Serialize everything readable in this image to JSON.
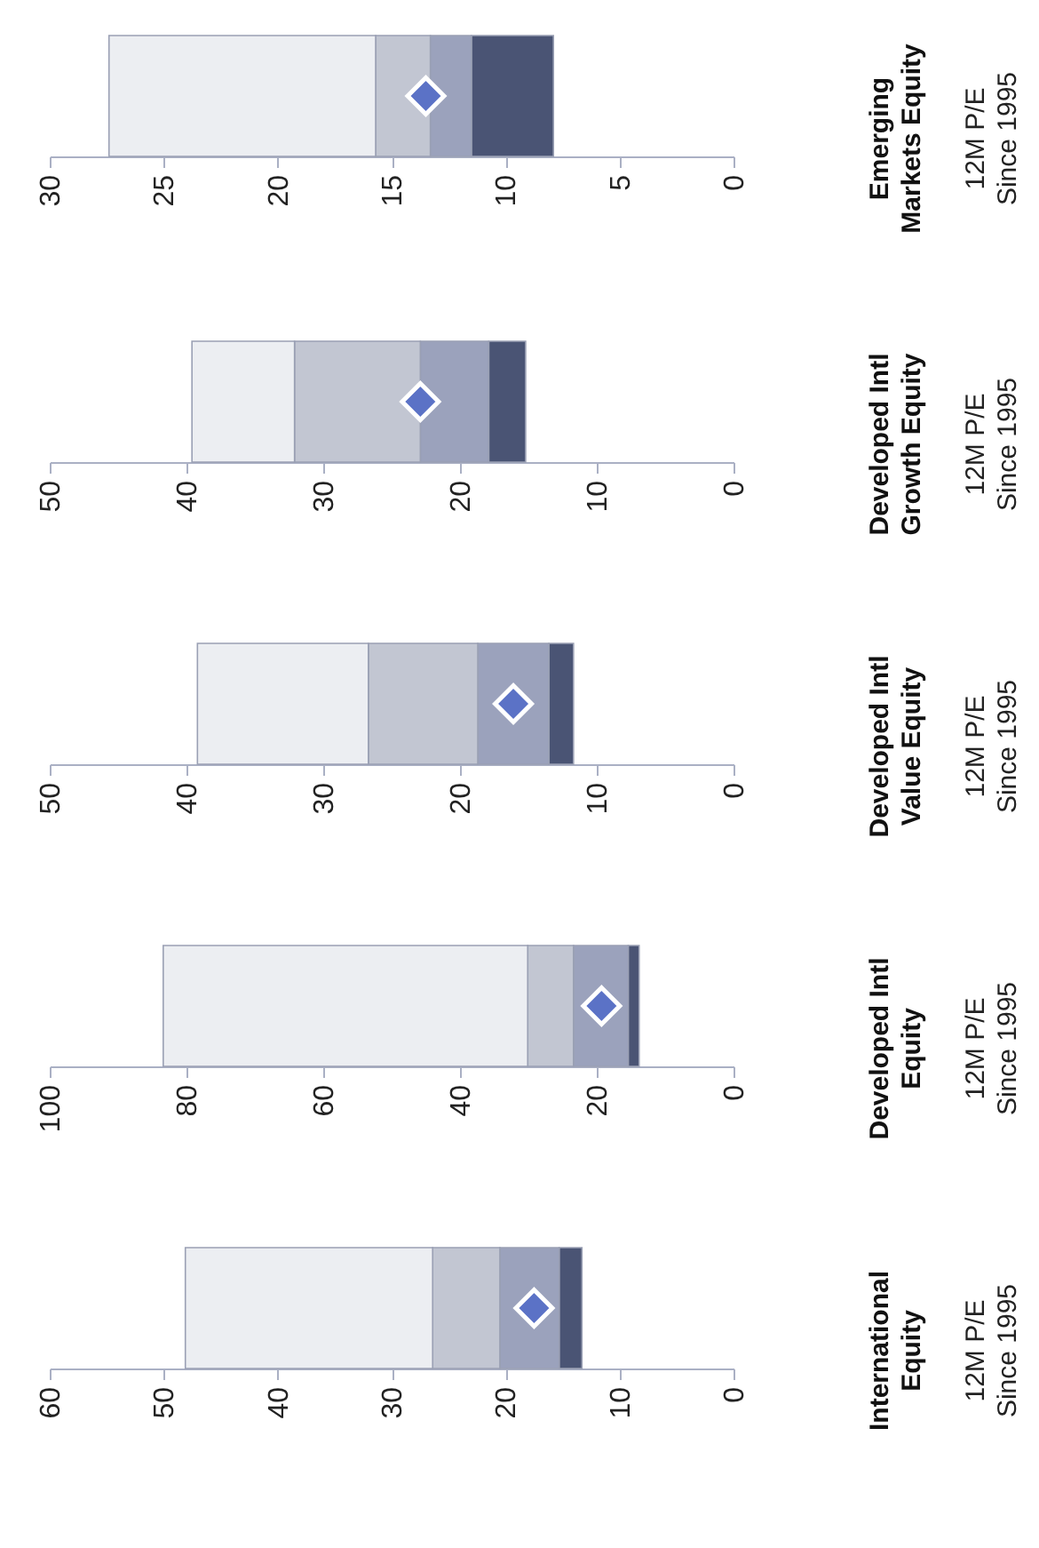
{
  "chart_data": [
    {
      "type": "bar",
      "orientation": "horizontal",
      "categories": [
        "Emerging\nMarkets Equity"
      ],
      "series": [
        {
          "color": "#4a5474",
          "base": [
            7.9
          ],
          "values": [
            3.6
          ]
        },
        {
          "color": "#9ba2bc",
          "base": [
            11.5
          ],
          "values": [
            1.8
          ]
        },
        {
          "color": "#c2c6d2",
          "base": [
            13.3
          ],
          "values": [
            2.4
          ]
        },
        {
          "color": "#eceef2",
          "base": [
            15.7
          ],
          "values": [
            11.7
          ]
        },
        {
          "type": "scatter",
          "marker": "diamond",
          "color": "#5b72c6",
          "values": [
            13.5
          ]
        }
      ],
      "xlim": [
        30,
        0
      ],
      "xticks": [
        30,
        25,
        20,
        15,
        10,
        5,
        0
      ],
      "annotations": [
        "12M P/E",
        "Since 1995"
      ]
    },
    {
      "type": "bar",
      "orientation": "horizontal",
      "categories": [
        "Developed Intl\nGrowth Equity"
      ],
      "series": [
        {
          "color": "#4a5474",
          "base": [
            15.2
          ],
          "values": [
            2.7
          ]
        },
        {
          "color": "#9ba2bc",
          "base": [
            17.9
          ],
          "values": [
            5.0
          ]
        },
        {
          "color": "#c2c6d2",
          "base": [
            22.9
          ],
          "values": [
            9.2
          ]
        },
        {
          "color": "#eceef2",
          "base": [
            32.1
          ],
          "values": [
            7.5
          ]
        },
        {
          "type": "scatter",
          "marker": "diamond",
          "color": "#5b72c6",
          "values": [
            22.9
          ]
        }
      ],
      "xlim": [
        50,
        0
      ],
      "xticks": [
        50,
        40,
        30,
        20,
        10,
        0
      ],
      "annotations": [
        "12M P/E",
        "Since 1995"
      ]
    },
    {
      "type": "bar",
      "orientation": "horizontal",
      "categories": [
        "Developed Intl\nValue Equity"
      ],
      "series": [
        {
          "color": "#4a5474",
          "base": [
            11.7
          ],
          "values": [
            1.8
          ]
        },
        {
          "color": "#9ba2bc",
          "base": [
            13.5
          ],
          "values": [
            5.2
          ]
        },
        {
          "color": "#c2c6d2",
          "base": [
            18.7
          ],
          "values": [
            8.0
          ]
        },
        {
          "color": "#eceef2",
          "base": [
            26.7
          ],
          "values": [
            12.5
          ]
        },
        {
          "type": "scatter",
          "marker": "diamond",
          "color": "#5b72c6",
          "values": [
            16.1
          ]
        }
      ],
      "xlim": [
        50,
        0
      ],
      "xticks": [
        50,
        40,
        30,
        20,
        10,
        0
      ],
      "annotations": [
        "12M P/E",
        "Since 1995"
      ]
    },
    {
      "type": "bar",
      "orientation": "horizontal",
      "categories": [
        "Developed Intl\nEquity"
      ],
      "series": [
        {
          "color": "#4a5474",
          "base": [
            13.8
          ],
          "values": [
            1.6
          ]
        },
        {
          "color": "#9ba2bc",
          "base": [
            15.4
          ],
          "values": [
            8.0
          ]
        },
        {
          "color": "#c2c6d2",
          "base": [
            23.4
          ],
          "values": [
            6.7
          ]
        },
        {
          "color": "#eceef2",
          "base": [
            30.1
          ],
          "values": [
            53.3
          ]
        },
        {
          "type": "scatter",
          "marker": "diamond",
          "color": "#5b72c6",
          "values": [
            19.3
          ]
        }
      ],
      "xlim": [
        100,
        0
      ],
      "xticks": [
        100,
        80,
        60,
        40,
        20,
        0
      ],
      "annotations": [
        "12M P/E",
        "Since 1995"
      ]
    },
    {
      "type": "bar",
      "orientation": "horizontal",
      "categories": [
        "International\nEquity"
      ],
      "series": [
        {
          "color": "#4a5474",
          "base": [
            13.3
          ],
          "values": [
            2.0
          ]
        },
        {
          "color": "#9ba2bc",
          "base": [
            15.3
          ],
          "values": [
            5.2
          ]
        },
        {
          "color": "#c2c6d2",
          "base": [
            20.5
          ],
          "values": [
            5.9
          ]
        },
        {
          "color": "#eceef2",
          "base": [
            26.4
          ],
          "values": [
            21.7
          ]
        },
        {
          "type": "scatter",
          "marker": "diamond",
          "color": "#5b72c6",
          "values": [
            17.5
          ]
        }
      ],
      "xlim": [
        60,
        0
      ],
      "xticks": [
        60,
        50,
        40,
        30,
        20,
        10,
        0
      ],
      "annotations": [
        "12M P/E",
        "Since 1995"
      ]
    }
  ]
}
